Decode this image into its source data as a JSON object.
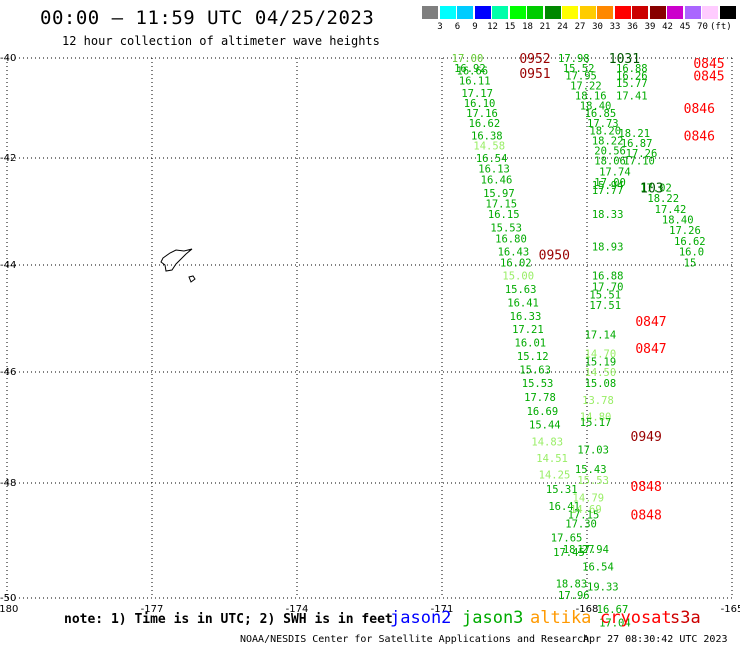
{
  "title": "00:00 – 11:59 UTC 04/25/2023",
  "subtitle": "12 hour collection of altimeter wave heights",
  "scale": {
    "unit": "(ft)",
    "colors": [
      "#7f7f7f",
      "#00ffff",
      "#00ccff",
      "#0000ff",
      "#00ffaa",
      "#00ff00",
      "#00cc00",
      "#008800",
      "#ffff00",
      "#ffcc00",
      "#ff8800",
      "#ff0000",
      "#cc0000",
      "#880000",
      "#cc00cc",
      "#aa66ff",
      "#ffccff",
      "#000000"
    ],
    "labels": [
      "3",
      "6",
      "9",
      "12",
      "15",
      "18",
      "21",
      "24",
      "27",
      "30",
      "33",
      "36",
      "39",
      "42",
      "45",
      "70"
    ]
  },
  "map": {
    "lon_ticks": [
      "-180",
      "-177",
      "-174",
      "-171",
      "-168",
      "-165"
    ],
    "lat_ticks": [
      "-40",
      "-42",
      "-44",
      "-46",
      "-48",
      "-50"
    ],
    "lon_range": [
      -180,
      -165
    ],
    "lat_range": [
      -50,
      -40
    ],
    "coastline_color": "#000000",
    "grid": "dotted"
  },
  "observations": [
    {
      "lon": -170.8,
      "lat": -40.0,
      "v": "17.00",
      "c": "#66cc33"
    },
    {
      "lon": -170.75,
      "lat": -40.2,
      "v": "16.92",
      "c": "#00aa00"
    },
    {
      "lon": -170.7,
      "lat": -40.25,
      "v": "16.66",
      "c": "#00aa00"
    },
    {
      "lon": -170.65,
      "lat": -40.45,
      "v": "16.11",
      "c": "#00aa00"
    },
    {
      "lon": -170.6,
      "lat": -40.7,
      "v": "17.17",
      "c": "#00aa00"
    },
    {
      "lon": -170.55,
      "lat": -40.9,
      "v": "16.10",
      "c": "#00aa00"
    },
    {
      "lon": -170.5,
      "lat": -41.1,
      "v": "17.16",
      "c": "#00aa00"
    },
    {
      "lon": -170.45,
      "lat": -41.3,
      "v": "16.62",
      "c": "#00aa00"
    },
    {
      "lon": -170.4,
      "lat": -41.55,
      "v": "16.38",
      "c": "#00aa00"
    },
    {
      "lon": -170.35,
      "lat": -41.75,
      "v": "14.58",
      "c": "#99ee66"
    },
    {
      "lon": -170.3,
      "lat": -42.0,
      "v": "16.54",
      "c": "#00aa00"
    },
    {
      "lon": -170.25,
      "lat": -42.2,
      "v": "16.13",
      "c": "#00aa00"
    },
    {
      "lon": -170.2,
      "lat": -42.4,
      "v": "16.46",
      "c": "#00aa00"
    },
    {
      "lon": -170.15,
      "lat": -42.65,
      "v": "15.97",
      "c": "#00aa00"
    },
    {
      "lon": -170.1,
      "lat": -42.85,
      "v": "17.15",
      "c": "#00aa00"
    },
    {
      "lon": -170.05,
      "lat": -43.05,
      "v": "16.15",
      "c": "#00aa00"
    },
    {
      "lon": -170.0,
      "lat": -43.3,
      "v": "15.53",
      "c": "#00aa00"
    },
    {
      "lon": -169.9,
      "lat": -43.5,
      "v": "16.80",
      "c": "#00aa00"
    },
    {
      "lon": -169.85,
      "lat": -43.75,
      "v": "16.43",
      "c": "#00aa00"
    },
    {
      "lon": -169.8,
      "lat": -43.95,
      "v": "16.02",
      "c": "#00aa00"
    },
    {
      "lon": -169.75,
      "lat": -44.2,
      "v": "15.00",
      "c": "#99ee66"
    },
    {
      "lon": -169.7,
      "lat": -44.45,
      "v": "15.63",
      "c": "#00aa00"
    },
    {
      "lon": -169.65,
      "lat": -44.7,
      "v": "16.41",
      "c": "#00aa00"
    },
    {
      "lon": -169.6,
      "lat": -44.95,
      "v": "16.33",
      "c": "#00aa00"
    },
    {
      "lon": -169.55,
      "lat": -45.2,
      "v": "17.21",
      "c": "#00aa00"
    },
    {
      "lon": -169.5,
      "lat": -45.45,
      "v": "16.01",
      "c": "#00aa00"
    },
    {
      "lon": -169.45,
      "lat": -45.7,
      "v": "15.12",
      "c": "#00aa00"
    },
    {
      "lon": -169.4,
      "lat": -45.95,
      "v": "15.63",
      "c": "#00aa00"
    },
    {
      "lon": -169.35,
      "lat": -46.2,
      "v": "15.53",
      "c": "#00aa00"
    },
    {
      "lon": -169.3,
      "lat": -46.45,
      "v": "17.78",
      "c": "#00aa00"
    },
    {
      "lon": -169.25,
      "lat": -46.7,
      "v": "16.69",
      "c": "#00aa00"
    },
    {
      "lon": -169.2,
      "lat": -46.95,
      "v": "15.44",
      "c": "#00aa00"
    },
    {
      "lon": -169.15,
      "lat": -47.25,
      "v": "14.83",
      "c": "#99ee66"
    },
    {
      "lon": -169.05,
      "lat": -47.55,
      "v": "14.51",
      "c": "#99ee66"
    },
    {
      "lon": -169.0,
      "lat": -47.85,
      "v": "14.25",
      "c": "#99ee66"
    },
    {
      "lon": -168.85,
      "lat": -48.1,
      "v": "15.31",
      "c": "#00aa00"
    },
    {
      "lon": -168.8,
      "lat": -48.4,
      "v": "16.41",
      "c": "#00aa00"
    },
    {
      "lon": -168.75,
      "lat": -48.95,
      "v": "17.65",
      "c": "#00aa00"
    },
    {
      "lon": -168.7,
      "lat": -49.2,
      "v": "17.45",
      "c": "#00aa00"
    },
    {
      "lon": -168.65,
      "lat": -49.75,
      "v": "18.83",
      "c": "#00aa00"
    },
    {
      "lon": -168.6,
      "lat": -49.95,
      "v": "17.96",
      "c": "#00aa00"
    },
    {
      "lon": -168.6,
      "lat": -40.0,
      "v": "17.98",
      "c": "#00aa00"
    },
    {
      "lon": -168.5,
      "lat": -40.2,
      "v": "15.52",
      "c": "#00aa00"
    },
    {
      "lon": -168.45,
      "lat": -40.35,
      "v": "17.95",
      "c": "#00aa00"
    },
    {
      "lon": -168.35,
      "lat": -40.55,
      "v": "17.22",
      "c": "#00aa00"
    },
    {
      "lon": -168.25,
      "lat": -40.75,
      "v": "18.16",
      "c": "#00aa00"
    },
    {
      "lon": -168.15,
      "lat": -40.95,
      "v": "18.40",
      "c": "#00aa00"
    },
    {
      "lon": -168.05,
      "lat": -41.1,
      "v": "16.85",
      "c": "#00aa00"
    },
    {
      "lon": -168.0,
      "lat": -41.3,
      "v": "17.73",
      "c": "#00aa00"
    },
    {
      "lon": -167.95,
      "lat": -41.45,
      "v": "18.20",
      "c": "#00aa00"
    },
    {
      "lon": -167.9,
      "lat": -41.65,
      "v": "18.22",
      "c": "#00aa00"
    },
    {
      "lon": -167.85,
      "lat": -41.85,
      "v": "20.56",
      "c": "#00aa00"
    },
    {
      "lon": -167.85,
      "lat": -42.05,
      "v": "18.06",
      "c": "#00aa00"
    },
    {
      "lon": -167.75,
      "lat": -42.25,
      "v": "17.74",
      "c": "#00aa00"
    },
    {
      "lon": -167.85,
      "lat": -42.45,
      "v": "17.00",
      "c": "#00aa00"
    },
    {
      "lon": -167.9,
      "lat": -42.5,
      "v": "15.94",
      "c": "#00aa00"
    },
    {
      "lon": -167.9,
      "lat": -42.6,
      "v": "17.77",
      "c": "#00aa00"
    },
    {
      "lon": -167.9,
      "lat": -43.05,
      "v": "18.33",
      "c": "#00aa00"
    },
    {
      "lon": -167.9,
      "lat": -43.65,
      "v": "18.93",
      "c": "#00aa00"
    },
    {
      "lon": -167.9,
      "lat": -44.2,
      "v": "16.88",
      "c": "#00aa00"
    },
    {
      "lon": -167.9,
      "lat": -44.4,
      "v": "17.70",
      "c": "#00aa00"
    },
    {
      "lon": -167.95,
      "lat": -44.55,
      "v": "15.51",
      "c": "#00aa00"
    },
    {
      "lon": -167.95,
      "lat": -44.75,
      "v": "17.51",
      "c": "#00aa00"
    },
    {
      "lon": -168.05,
      "lat": -45.3,
      "v": "17.14",
      "c": "#00aa00"
    },
    {
      "lon": -168.05,
      "lat": -45.65,
      "v": "14.70",
      "c": "#99ee66"
    },
    {
      "lon": -168.05,
      "lat": -45.8,
      "v": "15.19",
      "c": "#00aa00"
    },
    {
      "lon": -168.05,
      "lat": -46.0,
      "v": "14.50",
      "c": "#99ee66"
    },
    {
      "lon": -168.05,
      "lat": -46.2,
      "v": "15.08",
      "c": "#00aa00"
    },
    {
      "lon": -168.1,
      "lat": -46.5,
      "v": "13.78",
      "c": "#99ee66"
    },
    {
      "lon": -168.15,
      "lat": -46.8,
      "v": "14.80",
      "c": "#99ee66"
    },
    {
      "lon": -168.15,
      "lat": -46.9,
      "v": "15.17",
      "c": "#00aa00"
    },
    {
      "lon": -168.2,
      "lat": -47.4,
      "v": "17.03",
      "c": "#00aa00"
    },
    {
      "lon": -168.25,
      "lat": -47.75,
      "v": "15.43",
      "c": "#00aa00"
    },
    {
      "lon": -168.2,
      "lat": -47.95,
      "v": "15.53",
      "c": "#99ee66"
    },
    {
      "lon": -168.3,
      "lat": -48.25,
      "v": "14.79",
      "c": "#99ee66"
    },
    {
      "lon": -168.35,
      "lat": -48.45,
      "v": "14.69",
      "c": "#99ee66"
    },
    {
      "lon": -168.4,
      "lat": -48.55,
      "v": "17.15",
      "c": "#00aa00"
    },
    {
      "lon": -168.45,
      "lat": -48.7,
      "v": "17.30",
      "c": "#00aa00"
    },
    {
      "lon": -168.5,
      "lat": -49.15,
      "v": "18.27",
      "c": "#00aa00"
    },
    {
      "lon": -168.2,
      "lat": -49.15,
      "v": "17.94",
      "c": "#00aa00"
    },
    {
      "lon": -168.1,
      "lat": -49.45,
      "v": "16.54",
      "c": "#00aa00"
    },
    {
      "lon": -168.0,
      "lat": -49.8,
      "v": "19.33",
      "c": "#00aa00"
    },
    {
      "lon": -167.8,
      "lat": -50.2,
      "v": "16.67",
      "c": "#00aa00"
    },
    {
      "lon": -167.75,
      "lat": -50.45,
      "v": "17.04",
      "c": "#00aa00"
    },
    {
      "lon": -167.4,
      "lat": -40.2,
      "v": "16.88",
      "c": "#00aa00"
    },
    {
      "lon": -167.4,
      "lat": -40.35,
      "v": "16.26",
      "c": "#00aa00"
    },
    {
      "lon": -167.4,
      "lat": -40.5,
      "v": "15.77",
      "c": "#00aa00"
    },
    {
      "lon": -167.4,
      "lat": -40.75,
      "v": "17.41",
      "c": "#00aa00"
    },
    {
      "lon": -167.35,
      "lat": -41.5,
      "v": "18.21",
      "c": "#00aa00"
    },
    {
      "lon": -167.3,
      "lat": -41.7,
      "v": "16.87",
      "c": "#00aa00"
    },
    {
      "lon": -167.2,
      "lat": -41.9,
      "v": "17.26",
      "c": "#00aa00"
    },
    {
      "lon": -167.25,
      "lat": -42.05,
      "v": "17.10",
      "c": "#00aa00"
    },
    {
      "lon": -166.9,
      "lat": -42.55,
      "v": "17.02",
      "c": "#00aa00"
    },
    {
      "lon": -166.75,
      "lat": -42.75,
      "v": "18.22",
      "c": "#00aa00"
    },
    {
      "lon": -166.6,
      "lat": -42.95,
      "v": "17.42",
      "c": "#00aa00"
    },
    {
      "lon": -166.45,
      "lat": -43.15,
      "v": "18.40",
      "c": "#00aa00"
    },
    {
      "lon": -166.3,
      "lat": -43.35,
      "v": "17.26",
      "c": "#00aa00"
    },
    {
      "lon": -166.2,
      "lat": -43.55,
      "v": "16.62",
      "c": "#00aa00"
    },
    {
      "lon": -166.1,
      "lat": -43.75,
      "v": "16.0",
      "c": "#00aa00"
    },
    {
      "lon": -166.0,
      "lat": -43.95,
      "v": "15",
      "c": "#00aa00"
    }
  ],
  "times": [
    {
      "lon": -169.4,
      "lat": -40.0,
      "v": "0952",
      "c": "#990000"
    },
    {
      "lon": -169.4,
      "lat": -40.3,
      "v": "0951",
      "c": "#990000"
    },
    {
      "lon": -167.55,
      "lat": -40.0,
      "v": "1031",
      "c": "#005500"
    },
    {
      "lon": -166.9,
      "lat": -42.55,
      "v": "103",
      "c": "#005500"
    },
    {
      "lon": -165.8,
      "lat": -40.1,
      "v": "0845",
      "c": "#ff0000"
    },
    {
      "lon": -165.8,
      "lat": -40.35,
      "v": "0845",
      "c": "#ff0000"
    },
    {
      "lon": -166.0,
      "lat": -41.0,
      "v": "0846",
      "c": "#ff0000"
    },
    {
      "lon": -166.0,
      "lat": -41.55,
      "v": "0846",
      "c": "#ff0000"
    },
    {
      "lon": -169.0,
      "lat": -43.8,
      "v": "0950",
      "c": "#990000"
    },
    {
      "lon": -167.0,
      "lat": -45.05,
      "v": "0847",
      "c": "#ff0000"
    },
    {
      "lon": -167.0,
      "lat": -45.55,
      "v": "0847",
      "c": "#ff0000"
    },
    {
      "lon": -167.1,
      "lat": -47.15,
      "v": "0949",
      "c": "#990000"
    },
    {
      "lon": -167.1,
      "lat": -48.05,
      "v": "0848",
      "c": "#ff0000"
    },
    {
      "lon": -167.1,
      "lat": -48.55,
      "v": "0848",
      "c": "#ff0000"
    }
  ],
  "note": "note: 1) Time is in UTC; 2) SWH is in feet",
  "missions": [
    {
      "name": "jason2",
      "color": "#0000ff"
    },
    {
      "name": "jason3",
      "color": "#00aa00"
    },
    {
      "name": "altika",
      "color": "#ff9900"
    },
    {
      "name": "cryosat",
      "color": "#ff0000"
    },
    {
      "name": "s3a",
      "color": "#cc0000"
    }
  ],
  "credit": "NOAA/NESDIS Center for Satellite Applications and Research",
  "timestamp": "Apr 27 08:30:42 UTC 2023"
}
